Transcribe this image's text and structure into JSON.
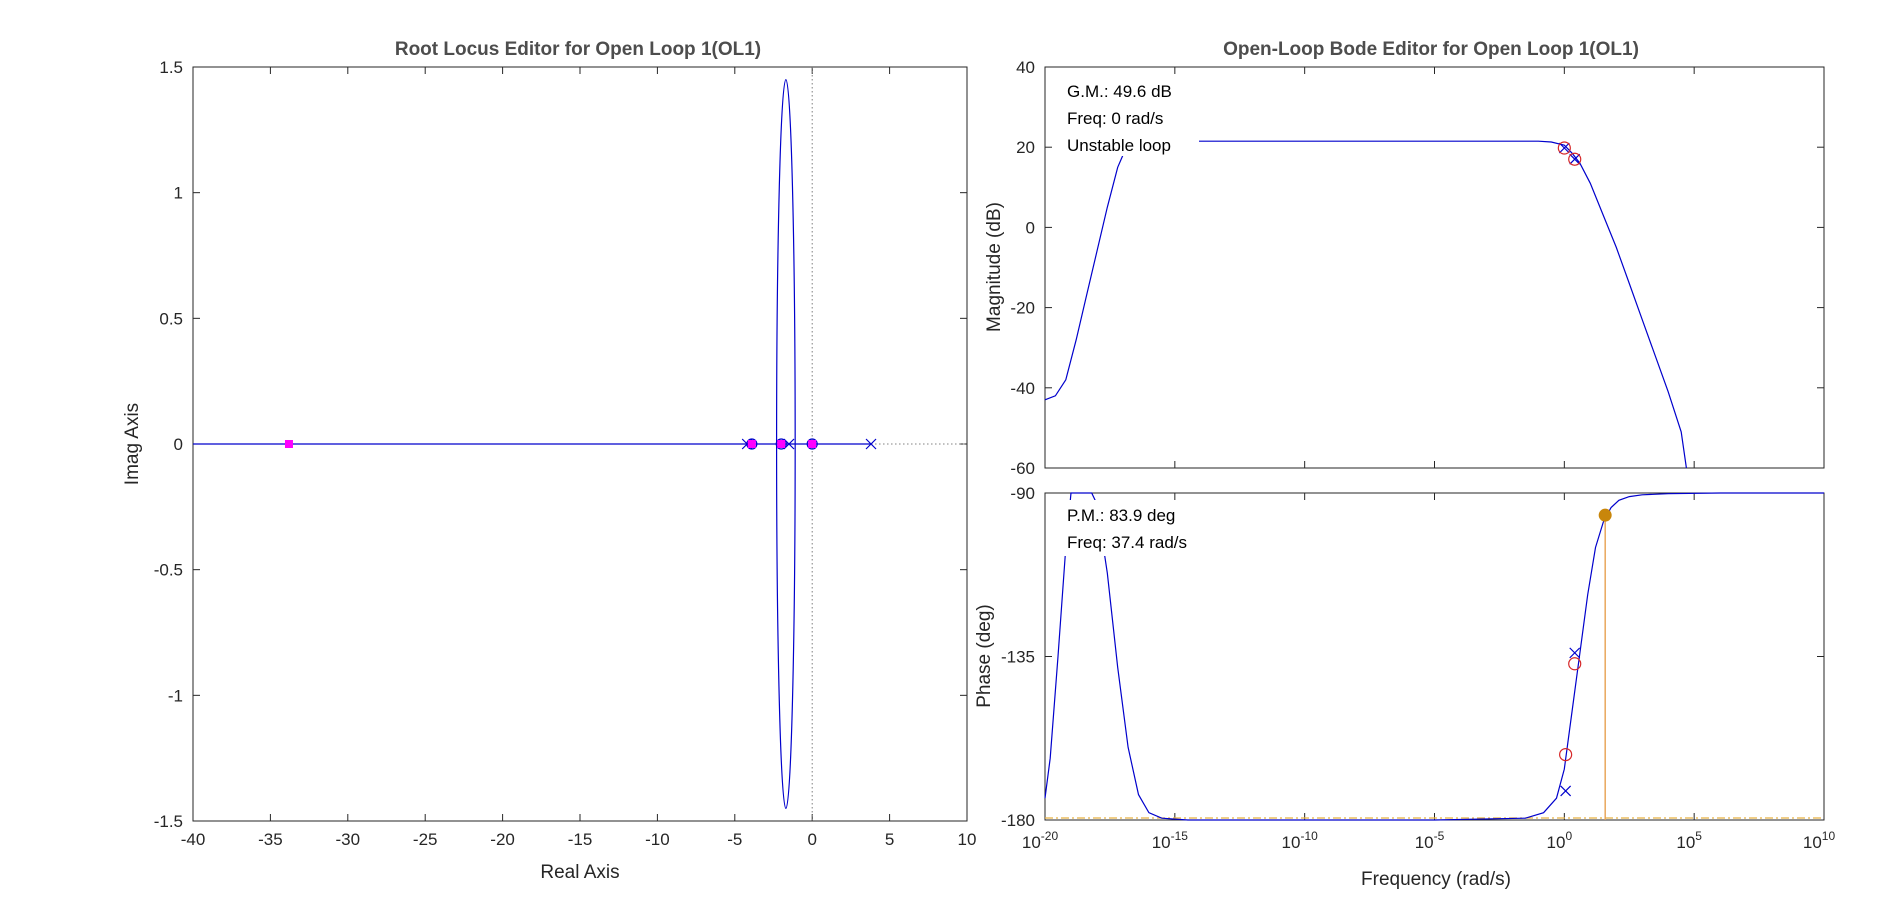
{
  "colors": {
    "locus": "#0000cc",
    "closed_loop_pole": "#ff00ff",
    "pole_marker": "#0000cc",
    "zero_marker": "#d62728",
    "margin_marker": "#c8860b",
    "margin_line": "#e8a050",
    "phase_ref_line": "#e8b040",
    "axes": "#262626",
    "dotted": "#808080"
  },
  "chart_data": [
    {
      "type": "line",
      "title": "Root Locus Editor for Open Loop 1(OL1)",
      "xlabel": "Real Axis",
      "ylabel": "Imag Axis",
      "xlim": [
        -40,
        10
      ],
      "ylim": [
        -1.5,
        1.5
      ],
      "xticks": [
        "-40",
        "-35",
        "-30",
        "-25",
        "-20",
        "-15",
        "-10",
        "-5",
        "0",
        "5",
        "10"
      ],
      "yticks": [
        "-1.5",
        "-1",
        "-0.5",
        "0",
        "0.5",
        "1",
        "1.5"
      ],
      "grid": false,
      "open_loop_poles": [
        [
          -4.2,
          0
        ],
        [
          -1.5,
          0
        ],
        [
          3.8,
          0
        ]
      ],
      "open_loop_zeros": [
        [
          -3.9,
          0
        ],
        [
          -2.0,
          0
        ],
        [
          0,
          0
        ]
      ],
      "closed_loop_poles": [
        [
          -33.8,
          0
        ],
        [
          -3.9,
          0
        ],
        [
          -2.0,
          0
        ],
        [
          0,
          0
        ]
      ],
      "locus_ellipse": {
        "center": [
          -1.7,
          0
        ],
        "real_half_width": 0.6,
        "imag_half_height": 1.45
      },
      "locus_real_segment": [
        -40,
        3.8
      ]
    },
    {
      "type": "line",
      "title": "Open-Loop Bode Editor for Open Loop 1(OL1)",
      "ylabel": "Magnitude (dB)",
      "xscale": "log",
      "xlim_exponent": [
        -20,
        10
      ],
      "ylim": [
        -60,
        40
      ],
      "yticks": [
        "-60",
        "-40",
        "-20",
        "0",
        "20",
        "40"
      ],
      "grid": false,
      "annotations": [
        "G.M.: 49.6 dB",
        "Freq: 0 rad/s",
        "Unstable loop"
      ],
      "magnitude_curve": {
        "log10_w": [
          -20,
          -19.6,
          -19.2,
          -18.8,
          -18.4,
          -18.0,
          -17.6,
          -17.2,
          -16.8,
          -16.4,
          -16.0,
          -15.6,
          -15.0,
          -10,
          -5,
          -1,
          -0.5,
          0,
          0.3,
          0.6,
          1.0,
          1.5,
          2.0,
          2.5,
          3.0,
          3.5,
          4.0,
          4.5,
          4.7
        ],
        "db": [
          -43,
          -42,
          -38,
          -28,
          -17,
          -6,
          5,
          15,
          21,
          21.5,
          21.5,
          21.5,
          21.5,
          21.5,
          21.5,
          21.5,
          21.3,
          20.5,
          18.5,
          16.0,
          11,
          3,
          -5,
          -14,
          -23,
          -32,
          -41,
          -51,
          -60
        ]
      },
      "pole_markers_db": [
        [
          0,
          19.8
        ],
        [
          0.4,
          17
        ]
      ],
      "zero_markers_db": [
        [
          0,
          19.8
        ],
        [
          0.4,
          17
        ]
      ]
    },
    {
      "type": "line",
      "xlabel": "Frequency (rad/s)",
      "ylabel": "Phase (deg)",
      "xscale": "log",
      "xlim_exponent": [
        -20,
        10
      ],
      "ylim": [
        -180,
        -90
      ],
      "yticks": [
        "-180",
        "-135",
        "-90"
      ],
      "xtick_base": "10",
      "xtick_exponents": [
        "-20",
        "-15",
        "-10",
        "-5",
        "0",
        "5",
        "10"
      ],
      "grid": false,
      "annotations": [
        "P.M.: 83.9 deg",
        "Freq: 37.4 rad/s"
      ],
      "phase_curve": {
        "log10_w": [
          -20,
          -19.8,
          -19.5,
          -19.2,
          -19.0,
          -18.8,
          -18.5,
          -18.2,
          -18.0,
          -17.6,
          -17.2,
          -16.8,
          -16.4,
          -16.0,
          -15.5,
          -14.5,
          -10,
          -5,
          -1.5,
          -0.8,
          -0.3,
          0,
          0.3,
          0.6,
          0.9,
          1.2,
          1.5,
          1.8,
          2.1,
          2.5,
          3.0,
          4.0,
          6.0,
          10
        ],
        "deg": [
          -174,
          -163,
          -135,
          -105,
          -90,
          -90,
          -90,
          -90,
          -93,
          -112,
          -138,
          -160,
          -173,
          -178,
          -179.5,
          -180,
          -180,
          -180,
          -179.5,
          -178,
          -174,
          -166,
          -150,
          -134,
          -118,
          -105,
          -98,
          -94,
          -92,
          -91,
          -90.5,
          -90.2,
          -90,
          -90
        ]
      },
      "pole_markers_deg": [
        [
          0.05,
          -172
        ],
        [
          0.4,
          -134
        ]
      ],
      "zero_markers_deg": [
        [
          0.05,
          -162
        ],
        [
          0.4,
          -137
        ]
      ],
      "phase_margin_point": {
        "log10_w": 1.573,
        "deg": -96.1
      },
      "reference_deg": -180
    }
  ]
}
